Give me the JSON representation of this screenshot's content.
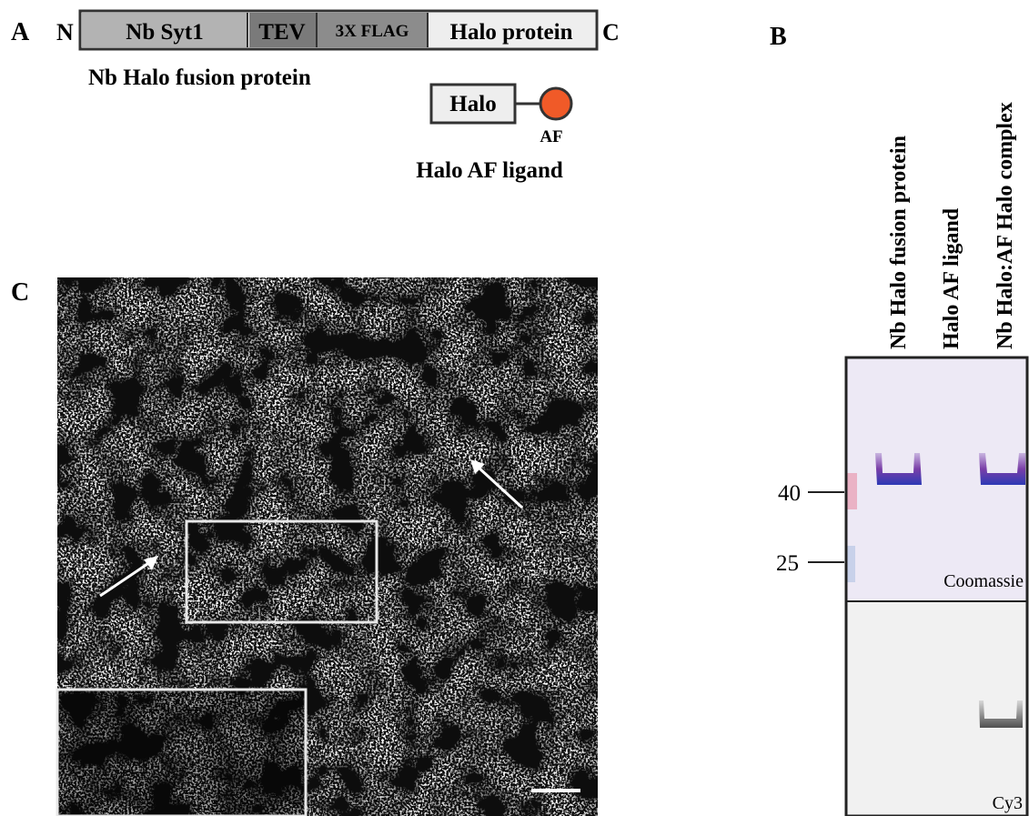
{
  "panel_a": {
    "label": "A",
    "n_terminus": "N",
    "segments": [
      "Nb Syt1",
      "TEV",
      "3X FLAG",
      "Halo protein"
    ],
    "c_terminus": "C",
    "fusion_label": "Nb Halo fusion protein",
    "ligand_box": "Halo",
    "ligand_dye": "AF",
    "ligand_label": "Halo AF ligand"
  },
  "panel_b": {
    "label": "B",
    "lanes": [
      "Nb Halo fusion protein",
      "Halo AF ligand",
      "Nb Halo:AF Halo complex"
    ],
    "markers": [
      "40",
      "25"
    ],
    "top_stain": "Coomassie",
    "bottom_stain": "Cy3"
  },
  "panel_c": {
    "label": "C"
  }
}
